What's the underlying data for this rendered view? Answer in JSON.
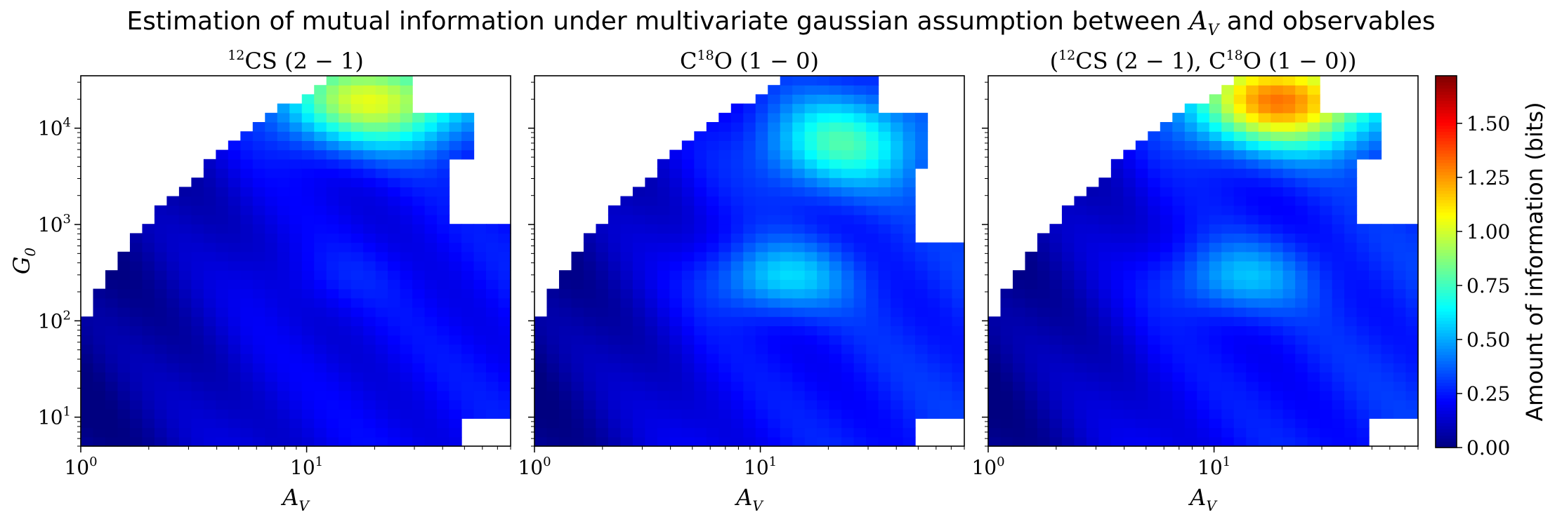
{
  "chart_data": {
    "type": "heatmap",
    "title": "Estimation of mutual information under multivariate gaussian assumption between A_V and observables",
    "title_parts": {
      "before": "Estimation of mutual information under multivariate gaussian assumption between ",
      "math_base": "A",
      "math_sub": "V",
      "after": " and observables"
    },
    "x_axis": {
      "label": "A_V",
      "label_base": "A",
      "label_sub": "V",
      "scale": "log",
      "range": [
        1,
        80
      ],
      "ticks": [
        1,
        10
      ],
      "tick_labels": [
        {
          "base": "10",
          "exp": "0"
        },
        {
          "base": "10",
          "exp": "1"
        }
      ]
    },
    "y_axis": {
      "label": "G_0",
      "label_base": "G",
      "label_sub": "0",
      "scale": "log",
      "range": [
        5,
        35000
      ],
      "ticks": [
        10,
        100,
        1000,
        10000
      ],
      "tick_labels": [
        {
          "base": "10",
          "exp": "1"
        },
        {
          "base": "10",
          "exp": "2"
        },
        {
          "base": "10",
          "exp": "3"
        },
        {
          "base": "10",
          "exp": "4"
        }
      ]
    },
    "panels": [
      {
        "title_pre": "",
        "title_iso": "12",
        "title_mol": "CS",
        "title_tail": " (2 − 1)",
        "title_post": "",
        "domain_key": "cs",
        "hot": [
          {
            "lx": 1.3,
            "ly": 4.3,
            "sx": 0.32,
            "sy": 0.36,
            "a": 0.82
          },
          {
            "lx": 1.12,
            "ly": 2.45,
            "sx": 0.22,
            "sy": 0.25,
            "a": 0.06
          }
        ],
        "base": 0.2
      },
      {
        "title_pre": "C",
        "title_iso": "18",
        "title_mol": "O",
        "title_tail": " (1 − 0)",
        "title_post": "",
        "domain_key": "co",
        "hot": [
          {
            "lx": 1.35,
            "ly": 3.85,
            "sx": 0.25,
            "sy": 0.35,
            "a": 0.5
          },
          {
            "lx": 1.08,
            "ly": 2.45,
            "sx": 0.22,
            "sy": 0.27,
            "a": 0.35
          }
        ],
        "base": 0.25
      },
      {
        "title_pre": "(",
        "title_iso": "12",
        "title_mol": "CS",
        "title_tail": " (2 − 1), ",
        "title_post": "C18O (1 − 0))",
        "domain_key": "cs",
        "hot": [
          {
            "lx": 1.3,
            "ly": 4.3,
            "sx": 0.3,
            "sy": 0.36,
            "a": 1.05
          },
          {
            "lx": 1.1,
            "ly": 2.45,
            "sx": 0.22,
            "sy": 0.27,
            "a": 0.3
          }
        ],
        "base": 0.25
      }
    ],
    "colorbar": {
      "label": "Amount of information (bits)",
      "min": 0.0,
      "max": 1.72,
      "ticks": [
        0.0,
        0.25,
        0.5,
        0.75,
        1.0,
        1.25,
        1.5
      ],
      "tick_labels": [
        "0.00",
        "0.25",
        "0.50",
        "0.75",
        "1.00",
        "1.25",
        "1.50"
      ],
      "colormap": "jet"
    },
    "grid": false
  }
}
